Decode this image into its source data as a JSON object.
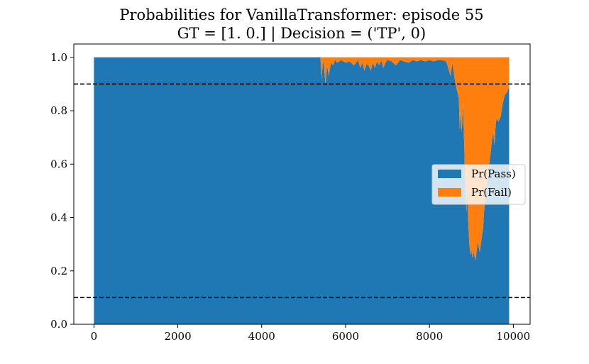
{
  "chart_data": {
    "type": "area",
    "stacked": true,
    "title": "Probabilities for VanillaTransformer: episode 55",
    "subtitle": "GT = [1. 0.] | Decision = ('TP', 0)",
    "xlabel": "",
    "ylabel": "",
    "xlim": [
      -480,
      10400
    ],
    "ylim": [
      0.0,
      1.05
    ],
    "x_ticks": [
      0,
      2000,
      4000,
      6000,
      8000,
      10000
    ],
    "x_tick_labels": [
      "0",
      "2000",
      "4000",
      "6000",
      "8000",
      "10000"
    ],
    "y_ticks": [
      0.0,
      0.2,
      0.4,
      0.6,
      0.8,
      1.0
    ],
    "y_tick_labels": [
      "0.0",
      "0.2",
      "0.4",
      "0.6",
      "0.8",
      "1.0"
    ],
    "thresholds": [
      0.9,
      0.1
    ],
    "grid": false,
    "legend_position": "center-right",
    "x": [
      0,
      5400,
      5430,
      5460,
      5490,
      5520,
      5560,
      5600,
      5650,
      5700,
      5750,
      5800,
      5900,
      6000,
      6100,
      6200,
      6300,
      6350,
      6400,
      6450,
      6500,
      6550,
      6600,
      6650,
      6700,
      6750,
      6800,
      6850,
      6900,
      6950,
      7000,
      7100,
      7200,
      7300,
      7400,
      7500,
      7600,
      7700,
      7800,
      7900,
      8000,
      8100,
      8200,
      8300,
      8400,
      8450,
      8500,
      8550,
      8600,
      8650,
      8700,
      8720,
      8740,
      8760,
      8780,
      8800,
      8850,
      8880,
      8900,
      8920,
      8950,
      8980,
      9000,
      9020,
      9050,
      9100,
      9150,
      9200,
      9250,
      9280,
      9300,
      9350,
      9400,
      9450,
      9500,
      9520,
      9550,
      9580,
      9600,
      9650,
      9700,
      9750,
      9800,
      9850,
      9900
    ],
    "series": [
      {
        "name": "Pr(Pass)",
        "color": "#1f77b4",
        "values": [
          1.0,
          1.0,
          0.92,
          0.99,
          0.96,
          0.9,
          0.97,
          0.93,
          0.98,
          0.97,
          0.99,
          0.98,
          0.99,
          0.98,
          0.985,
          0.97,
          0.99,
          0.96,
          0.98,
          0.95,
          0.975,
          0.97,
          0.95,
          0.98,
          0.96,
          0.985,
          0.97,
          0.99,
          0.96,
          0.98,
          0.99,
          0.985,
          0.97,
          0.99,
          0.985,
          0.98,
          0.99,
          0.985,
          0.99,
          0.985,
          0.99,
          0.985,
          0.99,
          0.99,
          0.985,
          0.96,
          0.93,
          0.98,
          0.92,
          0.88,
          0.85,
          0.73,
          0.8,
          0.72,
          0.75,
          0.83,
          0.55,
          0.42,
          0.55,
          0.4,
          0.3,
          0.26,
          0.28,
          0.25,
          0.27,
          0.24,
          0.31,
          0.27,
          0.33,
          0.36,
          0.42,
          0.5,
          0.57,
          0.63,
          0.7,
          0.72,
          0.67,
          0.75,
          0.77,
          0.76,
          0.78,
          0.83,
          0.86,
          0.87,
          0.89
        ]
      },
      {
        "name": "Pr(Fail)",
        "color": "#ff7f0e",
        "values": [
          0.0,
          0.0,
          0.08,
          0.01,
          0.04,
          0.1,
          0.03,
          0.07,
          0.02,
          0.03,
          0.01,
          0.02,
          0.01,
          0.02,
          0.015,
          0.03,
          0.01,
          0.04,
          0.02,
          0.05,
          0.025,
          0.03,
          0.05,
          0.02,
          0.04,
          0.015,
          0.03,
          0.01,
          0.04,
          0.02,
          0.01,
          0.015,
          0.03,
          0.01,
          0.015,
          0.02,
          0.01,
          0.015,
          0.01,
          0.015,
          0.01,
          0.015,
          0.01,
          0.01,
          0.015,
          0.04,
          0.07,
          0.02,
          0.08,
          0.12,
          0.15,
          0.27,
          0.2,
          0.28,
          0.25,
          0.17,
          0.45,
          0.58,
          0.45,
          0.6,
          0.7,
          0.74,
          0.72,
          0.75,
          0.73,
          0.76,
          0.69,
          0.73,
          0.67,
          0.64,
          0.58,
          0.5,
          0.43,
          0.37,
          0.3,
          0.28,
          0.33,
          0.25,
          0.23,
          0.24,
          0.22,
          0.17,
          0.14,
          0.13,
          0.11
        ]
      }
    ]
  }
}
